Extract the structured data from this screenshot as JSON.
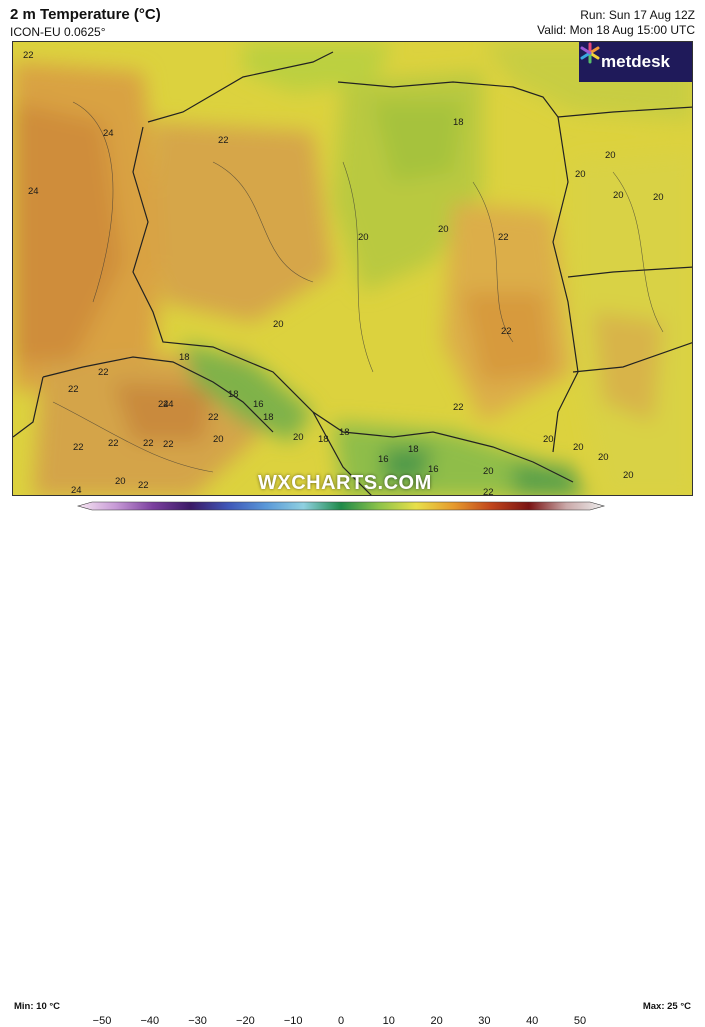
{
  "header": {
    "title": "2 m Temperature (°C)",
    "model": "ICON-EU 0.0625°",
    "run": "Run: Sun 17 Aug 12Z",
    "valid": "Valid: Mon 18 Aug 15:00 UTC"
  },
  "logo": {
    "text": "metdesk",
    "icon": "metdesk-star-icon"
  },
  "watermark": "WXCHARTS.COM",
  "map_labels": [
    "22",
    "24",
    "24",
    "22",
    "18",
    "20",
    "20",
    "20",
    "20",
    "20",
    "20",
    "20",
    "22",
    "22",
    "22",
    "22",
    "22",
    "22",
    "22",
    "24",
    "16",
    "18",
    "18",
    "18",
    "18",
    "18",
    "18",
    "16",
    "16",
    "20",
    "20",
    "20",
    "20",
    "20",
    "20",
    "20",
    "22",
    "22",
    "22",
    "22",
    "24",
    "24",
    "20",
    "22"
  ],
  "legend": {
    "min": "Min: 10 °C",
    "max": "Max: 25 °C",
    "ticks": [
      "−50",
      "−40",
      "−30",
      "−20",
      "−10",
      "0",
      "10",
      "20",
      "30",
      "40",
      "50"
    ],
    "range": [
      -50,
      50
    ],
    "colors": [
      "#f7e6f2",
      "#c79ad6",
      "#7b3f9e",
      "#3b1a66",
      "#3f57b8",
      "#5a98d8",
      "#8fd0e0",
      "#1f8a4a",
      "#8cc24a",
      "#e8e04a",
      "#e69a2e",
      "#c0451c",
      "#7a1414",
      "#caa9a9",
      "#ededed"
    ]
  }
}
